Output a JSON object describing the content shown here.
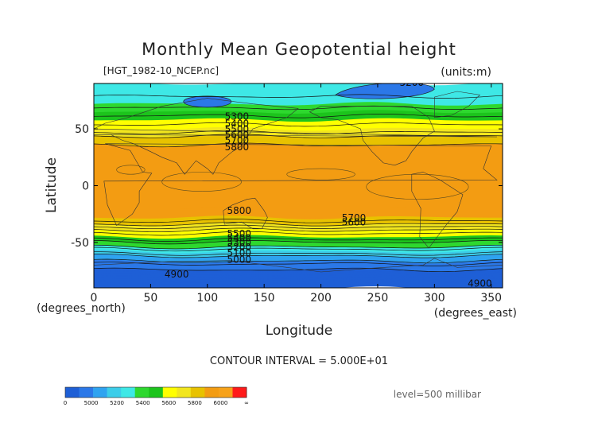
{
  "chart_data": {
    "type": "heatmap",
    "title": "Monthly Mean Geopotential height",
    "file_label": "[HGT_1982-10_NCEP.nc]",
    "units_label": "(units:m)",
    "xlabel": "Longitude",
    "ylabel": "Latitude",
    "x_units_label": "(degrees_east)",
    "y_units_label": "(degrees_north)",
    "xlim": [
      0,
      360
    ],
    "ylim": [
      -90,
      90
    ],
    "x_ticks": [
      0,
      50,
      100,
      150,
      200,
      250,
      300,
      350
    ],
    "y_ticks": [
      50,
      0,
      -50
    ],
    "contour_interval_label": "CONTOUR INTERVAL = 5.000E+01",
    "level_label": "level=500 millibar",
    "fill_levels": [
      4800,
      4900,
      5000,
      5100,
      5200,
      5300,
      5400,
      5500,
      5600,
      5700,
      5800,
      5900,
      6000,
      6100
    ],
    "fill_colors": [
      "#1e5fd6",
      "#2b78e8",
      "#2fa3f0",
      "#3ccde9",
      "#3ee8e6",
      "#2ed82f",
      "#1cc41c",
      "#ffff00",
      "#f2e61e",
      "#e8c200",
      "#f39c12",
      "#f7a21a",
      "#ff1a1a"
    ],
    "zonal_profile": [
      {
        "lat": 90,
        "z": 5230
      },
      {
        "lat": 80,
        "z": 5240
      },
      {
        "lat": 72,
        "z": 5300
      },
      {
        "lat": 65,
        "z": 5400
      },
      {
        "lat": 58,
        "z": 5500
      },
      {
        "lat": 50,
        "z": 5600
      },
      {
        "lat": 45,
        "z": 5680
      },
      {
        "lat": 40,
        "z": 5750
      },
      {
        "lat": 35,
        "z": 5810
      },
      {
        "lat": 25,
        "z": 5860
      },
      {
        "lat": 0,
        "z": 5880
      },
      {
        "lat": -20,
        "z": 5860
      },
      {
        "lat": -28,
        "z": 5800
      },
      {
        "lat": -33,
        "z": 5720
      },
      {
        "lat": -38,
        "z": 5620
      },
      {
        "lat": -45,
        "z": 5500
      },
      {
        "lat": -52,
        "z": 5350
      },
      {
        "lat": -58,
        "z": 5200
      },
      {
        "lat": -64,
        "z": 5050
      },
      {
        "lat": -70,
        "z": 4930
      },
      {
        "lat": -78,
        "z": 4870
      },
      {
        "lat": -90,
        "z": 4860
      }
    ],
    "contour_labels": [
      {
        "text": "5200",
        "lon": 280,
        "lat": 88
      },
      {
        "text": "5300",
        "lon": 126,
        "lat": 58
      },
      {
        "text": "5400",
        "lon": 126,
        "lat": 52
      },
      {
        "text": "5500",
        "lon": 126,
        "lat": 47
      },
      {
        "text": "5600",
        "lon": 126,
        "lat": 42
      },
      {
        "text": "5700",
        "lon": 126,
        "lat": 37
      },
      {
        "text": "5800",
        "lon": 126,
        "lat": 31
      },
      {
        "text": "5800",
        "lon": 128,
        "lat": -25
      },
      {
        "text": "5700",
        "lon": 229,
        "lat": -31
      },
      {
        "text": "5600",
        "lon": 229,
        "lat": -35
      },
      {
        "text": "5500",
        "lon": 128,
        "lat": -45
      },
      {
        "text": "5400",
        "lon": 128,
        "lat": -49
      },
      {
        "text": "5300",
        "lon": 128,
        "lat": -53
      },
      {
        "text": "5200",
        "lon": 128,
        "lat": -57
      },
      {
        "text": "5100",
        "lon": 128,
        "lat": -62
      },
      {
        "text": "5000",
        "lon": 128,
        "lat": -68
      },
      {
        "text": "4900",
        "lon": 73,
        "lat": -81
      },
      {
        "text": "4900",
        "lon": 340,
        "lat": -89
      }
    ],
    "colorbar_labels": [
      "0",
      "5000",
      "5200",
      "5400",
      "5600",
      "5800",
      "6000",
      "∞"
    ]
  }
}
